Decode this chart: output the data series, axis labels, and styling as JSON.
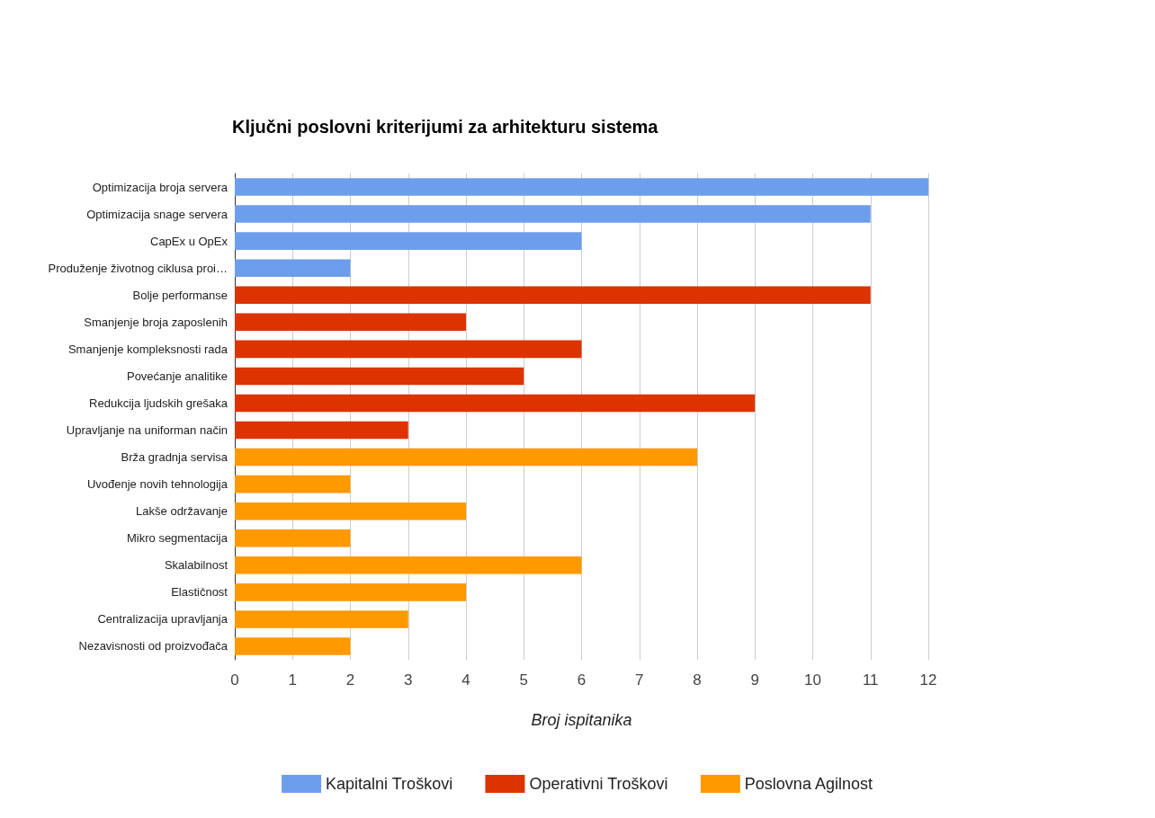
{
  "chart_data": {
    "type": "bar",
    "orientation": "horizontal",
    "stacked": true,
    "title": "Ključni poslovni kriterijumi za arhitekturu sistema",
    "xlabel": "Broj ispitanika",
    "categories": [
      "Optimizacija broja servera",
      "Optimizacija snage servera",
      "CapEx u OpEx",
      "Produženje životnog ciklusa proi…",
      "Bolje performanse",
      "Smanjenje broja zaposlenih",
      "Smanjenje kompleksnosti rada",
      "Povećanje analitike",
      "Redukcija ljudskih grešaka",
      "Upravljanje na uniforman način",
      "Brža gradnja servisa",
      "Uvođenje novih tehnologija",
      "Lakše održavanje",
      "Mikro segmentacija",
      "Skalabilnost",
      "Elastičnost",
      "Centralizacija upravljanja",
      "Nezavisnosti od proizvođača"
    ],
    "series": [
      {
        "name": "Kapitalni Troškovi",
        "color": "#6d9eeb",
        "values": [
          12,
          11,
          6,
          2,
          null,
          null,
          null,
          null,
          null,
          null,
          null,
          null,
          null,
          null,
          null,
          null,
          null,
          null
        ]
      },
      {
        "name": "Operativni Troškovi",
        "color": "#dc3300",
        "values": [
          null,
          null,
          null,
          null,
          11,
          4,
          6,
          5,
          9,
          3,
          null,
          null,
          null,
          null,
          null,
          null,
          null,
          null
        ]
      },
      {
        "name": "Poslovna Agilnost",
        "color": "#ff9900",
        "values": [
          null,
          null,
          null,
          null,
          null,
          null,
          null,
          null,
          null,
          null,
          8,
          2,
          4,
          2,
          6,
          4,
          3,
          2
        ]
      }
    ],
    "xlim": [
      0,
      12
    ],
    "xticks": [
      0,
      1,
      2,
      3,
      4,
      5,
      6,
      7,
      8,
      9,
      10,
      11,
      12
    ],
    "grid": "x",
    "legend": "bottom"
  }
}
